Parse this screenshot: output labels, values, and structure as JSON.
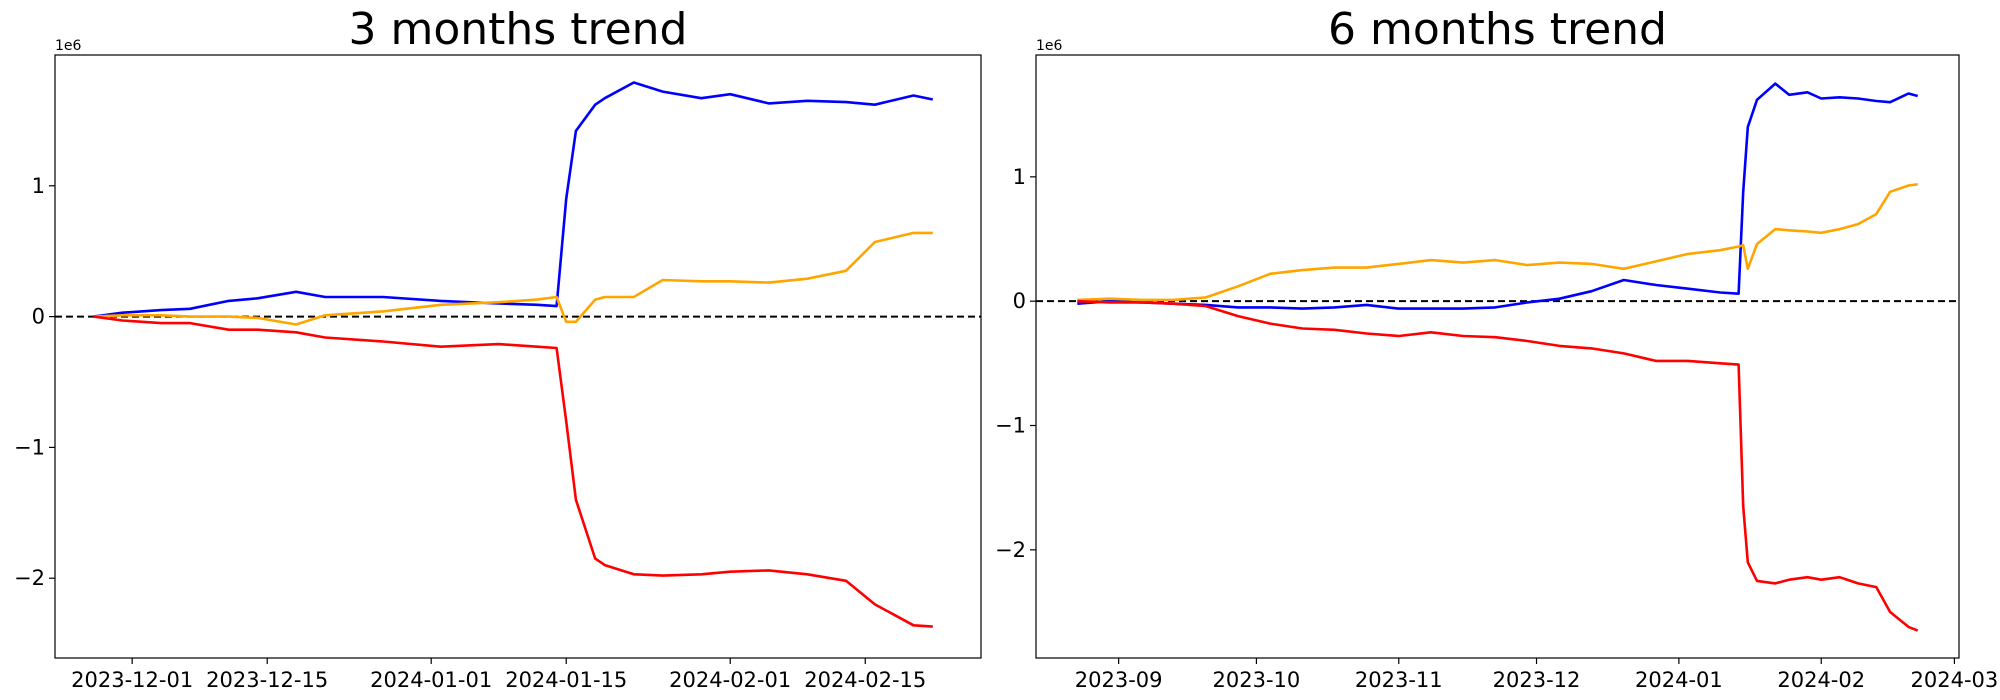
{
  "chart_data": [
    {
      "type": "line",
      "title": "3 months trend",
      "offset_text": "1e6",
      "x": [
        "2023-11-27",
        "2023-11-30",
        "2023-12-04",
        "2023-12-07",
        "2023-12-11",
        "2023-12-14",
        "2023-12-18",
        "2023-12-21",
        "2023-12-27",
        "2024-01-02",
        "2024-01-08",
        "2024-01-12",
        "2024-01-14",
        "2024-01-15",
        "2024-01-16",
        "2024-01-18",
        "2024-01-19",
        "2024-01-22",
        "2024-01-25",
        "2024-01-29",
        "2024-02-01",
        "2024-02-05",
        "2024-02-09",
        "2024-02-13",
        "2024-02-16",
        "2024-02-20",
        "2024-02-22"
      ],
      "series": [
        {
          "color": "#0000ff",
          "values": [
            0,
            0.03,
            0.05,
            0.06,
            0.12,
            0.14,
            0.19,
            0.15,
            0.15,
            0.12,
            0.1,
            0.09,
            0.08,
            0.9,
            1.42,
            1.62,
            1.67,
            1.79,
            1.72,
            1.67,
            1.7,
            1.63,
            1.65,
            1.64,
            1.62,
            1.69,
            1.66
          ]
        },
        {
          "color": "#ffa500",
          "values": [
            0,
            0.01,
            0.01,
            0.0,
            0.0,
            -0.01,
            -0.06,
            0.01,
            0.04,
            0.09,
            0.11,
            0.13,
            0.15,
            -0.04,
            -0.04,
            0.13,
            0.15,
            0.15,
            0.28,
            0.27,
            0.27,
            0.26,
            0.29,
            0.35,
            0.57,
            0.64,
            0.64
          ]
        },
        {
          "color": "#ff0000",
          "values": [
            0,
            -0.03,
            -0.05,
            -0.05,
            -0.1,
            -0.1,
            -0.12,
            -0.16,
            -0.19,
            -0.23,
            -0.21,
            -0.23,
            -0.24,
            -0.8,
            -1.4,
            -1.85,
            -1.9,
            -1.97,
            -1.98,
            -1.97,
            -1.95,
            -1.94,
            -1.97,
            -2.02,
            -2.2,
            -2.36,
            -2.37
          ]
        }
      ],
      "reference_line": 0,
      "xlim": [
        "2023-11-23",
        "2024-02-27"
      ],
      "xticks": [
        "2023-12-01",
        "2023-12-15",
        "2024-01-01",
        "2024-01-15",
        "2024-02-01",
        "2024-02-15"
      ],
      "ylim": [
        -2.61,
        2.0
      ],
      "yticks": [
        {
          "value": -2,
          "label": "−2"
        },
        {
          "value": -1,
          "label": "−1"
        },
        0,
        1
      ]
    },
    {
      "type": "line",
      "title": "6 months trend",
      "offset_text": "1e6",
      "x": [
        "2023-08-23",
        "2023-08-30",
        "2023-09-06",
        "2023-09-13",
        "2023-09-20",
        "2023-09-27",
        "2023-10-04",
        "2023-10-11",
        "2023-10-18",
        "2023-10-25",
        "2023-11-01",
        "2023-11-08",
        "2023-11-15",
        "2023-11-22",
        "2023-11-29",
        "2023-12-06",
        "2023-12-13",
        "2023-12-20",
        "2023-12-27",
        "2024-01-03",
        "2024-01-10",
        "2024-01-14",
        "2024-01-15",
        "2024-01-16",
        "2024-01-18",
        "2024-01-22",
        "2024-01-25",
        "2024-01-29",
        "2024-02-01",
        "2024-02-05",
        "2024-02-09",
        "2024-02-13",
        "2024-02-16",
        "2024-02-20",
        "2024-02-22"
      ],
      "series": [
        {
          "color": "#0000ff",
          "values": [
            -0.02,
            0,
            -0.01,
            -0.02,
            -0.03,
            -0.05,
            -0.05,
            -0.06,
            -0.05,
            -0.03,
            -0.06,
            -0.06,
            -0.06,
            -0.05,
            -0.01,
            0.02,
            0.08,
            0.17,
            0.13,
            0.1,
            0.07,
            0.06,
            0.88,
            1.4,
            1.62,
            1.75,
            1.66,
            1.68,
            1.63,
            1.64,
            1.63,
            1.61,
            1.6,
            1.67,
            1.65
          ]
        },
        {
          "color": "#ffa500",
          "values": [
            0.01,
            0.02,
            0.01,
            0.01,
            0.03,
            0.12,
            0.22,
            0.25,
            0.27,
            0.27,
            0.3,
            0.33,
            0.31,
            0.33,
            0.29,
            0.31,
            0.3,
            0.26,
            0.32,
            0.38,
            0.41,
            0.44,
            0.45,
            0.26,
            0.46,
            0.58,
            0.57,
            0.56,
            0.55,
            0.58,
            0.62,
            0.7,
            0.88,
            0.93,
            0.94
          ]
        },
        {
          "color": "#ff0000",
          "values": [
            0.0,
            -0.01,
            -0.01,
            -0.02,
            -0.04,
            -0.12,
            -0.18,
            -0.22,
            -0.23,
            -0.26,
            -0.28,
            -0.25,
            -0.28,
            -0.29,
            -0.32,
            -0.36,
            -0.38,
            -0.42,
            -0.48,
            -0.48,
            -0.5,
            -0.51,
            -1.65,
            -2.1,
            -2.25,
            -2.27,
            -2.24,
            -2.22,
            -2.24,
            -2.22,
            -2.27,
            -2.3,
            -2.5,
            -2.62,
            -2.65
          ]
        }
      ],
      "reference_line": 0,
      "xlim": [
        "2023-08-14",
        "2024-03-02"
      ],
      "xticks": [
        "2023-09",
        "2023-10",
        "2023-11",
        "2023-12",
        "2024-01",
        "2024-02",
        "2024-03"
      ],
      "ylim": [
        -2.87,
        1.98
      ],
      "yticks": [
        {
          "value": -2,
          "label": "−2"
        },
        {
          "value": -1,
          "label": "−1"
        },
        0,
        1
      ]
    }
  ]
}
